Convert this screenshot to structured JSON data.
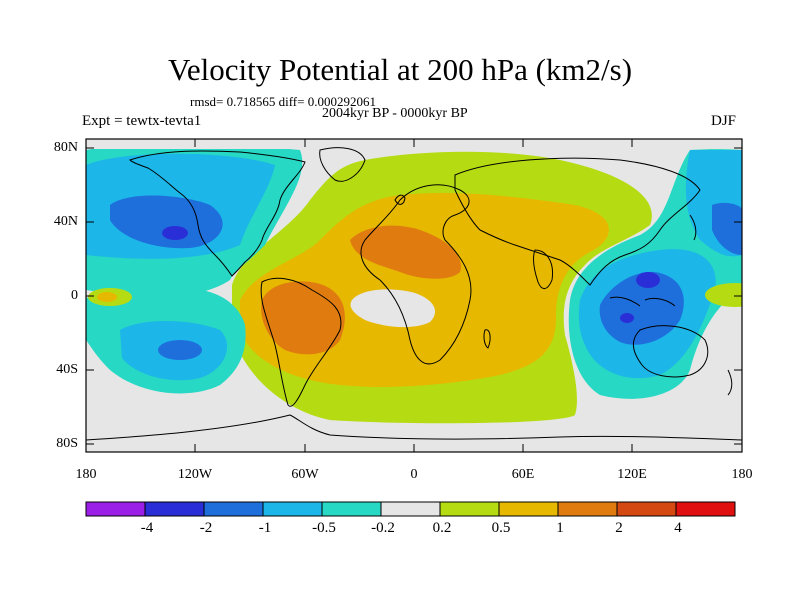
{
  "title": "Velocity Potential at 200 hPa (km2/s)",
  "stats": "rmsd= 0.718565 diff= 0.000292061",
  "period": "2004kyr BP - 0000kyr BP",
  "experiment": "Expt = tewtx-tevta1",
  "season": "DJF",
  "map": {
    "y_ticks": [
      "80N",
      "40N",
      "0",
      "40S",
      "80S"
    ],
    "x_ticks": [
      "180",
      "120W",
      "60W",
      "0",
      "60E",
      "120E",
      "180"
    ]
  },
  "colorbar": {
    "labels": [
      "-4",
      "-2",
      "-1",
      "-0.5",
      "-0.2",
      "0.2",
      "0.5",
      "1",
      "2",
      "4"
    ],
    "colors": [
      "#9b1fe6",
      "#2a2ed6",
      "#1e6fdc",
      "#1cb6e8",
      "#27d8c4",
      "#e6e6e6",
      "#b5dc12",
      "#e6b800",
      "#e07b10",
      "#d44812",
      "#e01010"
    ]
  }
}
